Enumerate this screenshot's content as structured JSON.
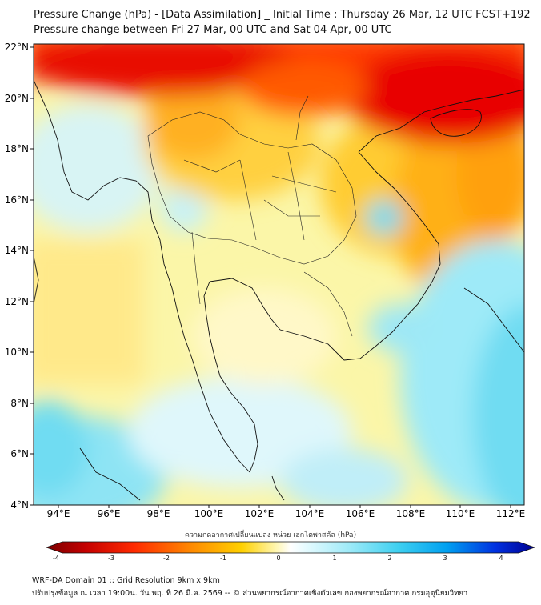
{
  "header": {
    "title_line1": "Pressure Change (hPa) - [Data Assimilation] _ Initial Time : Thursday 26 Mar, 12 UTC FCST+192",
    "title_line2": "Pressure change between Fri 27 Mar, 00 UTC and Sat 04 Apr, 00 UTC"
  },
  "map": {
    "lat_labels": [
      "22°N",
      "20°N",
      "18°N",
      "16°N",
      "14°N",
      "12°N",
      "10°N",
      "8°N",
      "6°N",
      "4°N"
    ],
    "lon_labels": [
      "94°E",
      "96°E",
      "98°E",
      "100°E",
      "102°E",
      "104°E",
      "106°E",
      "108°E",
      "110°E",
      "112°E"
    ],
    "colors": {
      "strong_increase": "#e00000",
      "increase": "#ff8a00",
      "slight_increase": "#ffe066",
      "neutral": "#fbfbe0",
      "slight_decrease": "#c8f2f8",
      "decrease": "#4fd6f0"
    }
  },
  "colorbar": {
    "title": "ความกดอากาศเปลี่ยนแปลง หน่วย เฮกโตพาสคัล (hPa)",
    "tick_labels": [
      "-4",
      "-3",
      "-2",
      "-1",
      "0",
      "1",
      "2",
      "3",
      "4"
    ]
  },
  "footer": {
    "line1": "WRF-DA Domain 01 :: Grid Resolution 9km x 9km",
    "line2": "ปรับปรุงข้อมูล ณ เวลา 19:00น. วัน พฤ. ที่ 26 มี.ค. 2569 -- © ส่วนพยากรณ์อากาศเชิงตัวเลข กองพยากรณ์อากาศ กรมอุตุนิยมวิทยา"
  }
}
